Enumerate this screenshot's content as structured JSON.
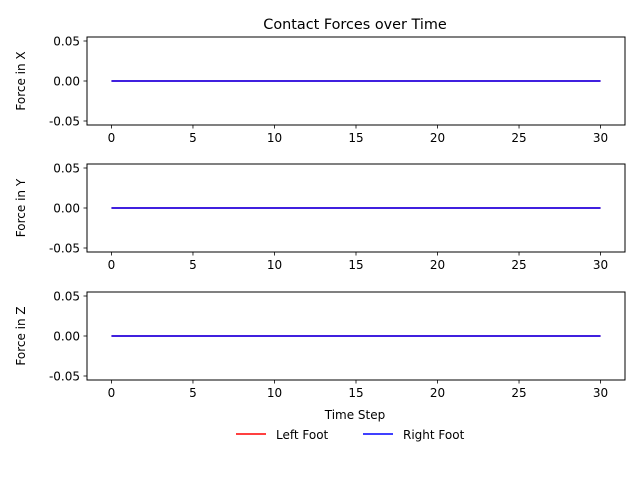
{
  "chart_data": {
    "type": "line",
    "title": "Contact Forces over Time",
    "xlabel": "Time Step",
    "x": [
      0,
      1,
      2,
      3,
      4,
      5,
      6,
      7,
      8,
      9,
      10,
      11,
      12,
      13,
      14,
      15,
      16,
      17,
      18,
      19,
      20,
      21,
      22,
      23,
      24,
      25,
      26,
      27,
      28,
      29,
      30
    ],
    "xlim": [
      -1.5,
      31.5
    ],
    "xticks": [
      "0",
      "5",
      "10",
      "15",
      "20",
      "25",
      "30"
    ],
    "yticks": [
      "-0.05",
      "0.00",
      "0.05"
    ],
    "ylim": [
      -0.055,
      0.055
    ],
    "legend_position": "bottom-center",
    "colors": {
      "left": "#ff0000",
      "right": "#0000ff"
    },
    "subplots": [
      {
        "ylabel": "Force in X",
        "series": [
          {
            "name": "Left Foot",
            "values": [
              0,
              0,
              0,
              0,
              0,
              0,
              0,
              0,
              0,
              0,
              0,
              0,
              0,
              0,
              0,
              0,
              0,
              0,
              0,
              0,
              0,
              0,
              0,
              0,
              0,
              0,
              0,
              0,
              0,
              0,
              0
            ]
          },
          {
            "name": "Right Foot",
            "values": [
              0,
              0,
              0,
              0,
              0,
              0,
              0,
              0,
              0,
              0,
              0,
              0,
              0,
              0,
              0,
              0,
              0,
              0,
              0,
              0,
              0,
              0,
              0,
              0,
              0,
              0,
              0,
              0,
              0,
              0,
              0
            ]
          }
        ]
      },
      {
        "ylabel": "Force in Y",
        "series": [
          {
            "name": "Left Foot",
            "values": [
              0,
              0,
              0,
              0,
              0,
              0,
              0,
              0,
              0,
              0,
              0,
              0,
              0,
              0,
              0,
              0,
              0,
              0,
              0,
              0,
              0,
              0,
              0,
              0,
              0,
              0,
              0,
              0,
              0,
              0,
              0
            ]
          },
          {
            "name": "Right Foot",
            "values": [
              0,
              0,
              0,
              0,
              0,
              0,
              0,
              0,
              0,
              0,
              0,
              0,
              0,
              0,
              0,
              0,
              0,
              0,
              0,
              0,
              0,
              0,
              0,
              0,
              0,
              0,
              0,
              0,
              0,
              0,
              0
            ]
          }
        ]
      },
      {
        "ylabel": "Force in Z",
        "series": [
          {
            "name": "Left Foot",
            "values": [
              0,
              0,
              0,
              0,
              0,
              0,
              0,
              0,
              0,
              0,
              0,
              0,
              0,
              0,
              0,
              0,
              0,
              0,
              0,
              0,
              0,
              0,
              0,
              0,
              0,
              0,
              0,
              0,
              0,
              0,
              0
            ]
          },
          {
            "name": "Right Foot",
            "values": [
              0,
              0,
              0,
              0,
              0,
              0,
              0,
              0,
              0,
              0,
              0,
              0,
              0,
              0,
              0,
              0,
              0,
              0,
              0,
              0,
              0,
              0,
              0,
              0,
              0,
              0,
              0,
              0,
              0,
              0,
              0
            ]
          }
        ]
      }
    ],
    "legend": [
      "Left Foot",
      "Right Foot"
    ]
  }
}
